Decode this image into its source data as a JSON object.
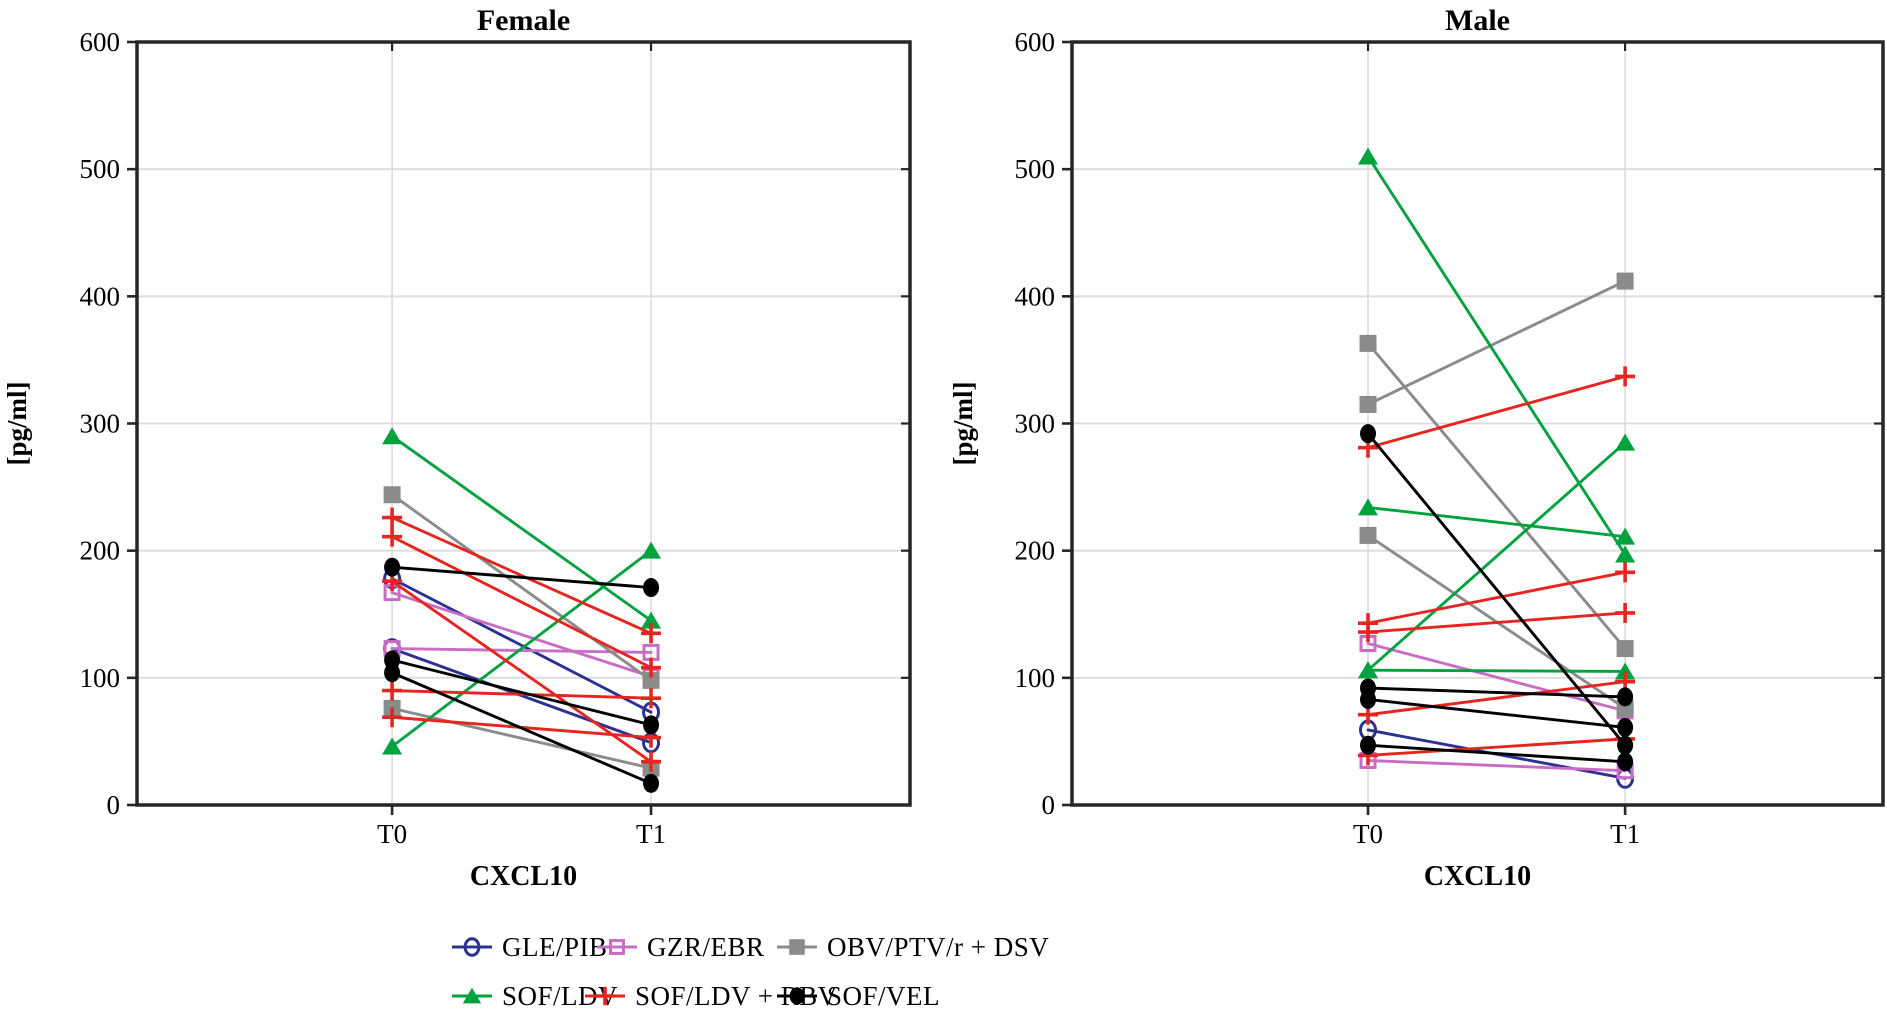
{
  "figure": {
    "ylabel": "[pg/ml]",
    "xlabel": "CXCL10",
    "x_categories": [
      "T0",
      "T1"
    ],
    "yticks": [
      0,
      100,
      200,
      300,
      400,
      500,
      600
    ],
    "panel_titles": [
      "Female",
      "Male"
    ]
  },
  "colors": {
    "grid": "#dcdcdc",
    "frame": "#262626",
    "background": "#ffffff"
  },
  "legend": {
    "items": [
      {
        "label": "GLE/PIB",
        "marker": "open-circle",
        "color": "#2b3191"
      },
      {
        "label": "GZR/EBR",
        "marker": "open-square",
        "color": "#c76ec4"
      },
      {
        "label": "OBV/PTV/r + DSV",
        "marker": "filled-square",
        "color": "#8b8b8b"
      },
      {
        "label": "SOF/LDV",
        "marker": "filled-triangle",
        "color": "#00a23e"
      },
      {
        "label": "SOF/LDV + RBV",
        "marker": "plus",
        "color": "#e52620"
      },
      {
        "label": "SOF/VEL",
        "marker": "filled-circle",
        "color": "#000000"
      }
    ]
  },
  "chart_data": [
    {
      "type": "line",
      "title": "Female",
      "xlabel": "CXCL10",
      "ylabel": "[pg/ml]",
      "categories": [
        "T0",
        "T1"
      ],
      "ylim": [
        0,
        600
      ],
      "yticks": [
        0,
        100,
        200,
        300,
        400,
        500,
        600
      ],
      "grid": true,
      "series": [
        {
          "name": "GLE/PIB",
          "lines": [
            [
              178,
              73
            ],
            [
              123,
              49
            ]
          ]
        },
        {
          "name": "GZR/EBR",
          "lines": [
            [
              167,
              101
            ],
            [
              123,
              120
            ]
          ]
        },
        {
          "name": "OBV/PTV/r + DSV",
          "lines": [
            [
              244,
              98
            ],
            [
              76,
              29
            ]
          ]
        },
        {
          "name": "SOF/LDV",
          "lines": [
            [
              290,
              145
            ],
            [
              46,
              200
            ]
          ]
        },
        {
          "name": "SOF/LDV + RBV",
          "lines": [
            [
              226,
              135
            ],
            [
              211,
              108
            ],
            [
              176,
              34
            ],
            [
              90,
              84
            ],
            [
              69,
              53
            ]
          ]
        },
        {
          "name": "SOF/VEL",
          "lines": [
            [
              187,
              171
            ],
            [
              114,
              63
            ],
            [
              104,
              17
            ]
          ]
        }
      ]
    },
    {
      "type": "line",
      "title": "Male",
      "xlabel": "CXCL10",
      "ylabel": "[pg/ml]",
      "categories": [
        "T0",
        "T1"
      ],
      "ylim": [
        0,
        600
      ],
      "yticks": [
        0,
        100,
        200,
        300,
        400,
        500,
        600
      ],
      "grid": true,
      "series": [
        {
          "name": "GLE/PIB",
          "lines": [
            [
              59,
              21
            ]
          ]
        },
        {
          "name": "GZR/EBR",
          "lines": [
            [
              127,
              74
            ],
            [
              35,
              27
            ]
          ]
        },
        {
          "name": "OBV/PTV/r + DSV",
          "lines": [
            [
              315,
              412
            ],
            [
              363,
              123
            ],
            [
              212,
              76
            ]
          ]
        },
        {
          "name": "SOF/LDV",
          "lines": [
            [
              510,
              197
            ],
            [
              234,
              211
            ],
            [
              106,
              285
            ],
            [
              106,
              105
            ]
          ]
        },
        {
          "name": "SOF/LDV + RBV",
          "lines": [
            [
              281,
              337
            ],
            [
              143,
              183
            ],
            [
              136,
              151
            ],
            [
              71,
              97
            ],
            [
              39,
              52
            ]
          ]
        },
        {
          "name": "SOF/VEL",
          "lines": [
            [
              292,
              47
            ],
            [
              92,
              85
            ],
            [
              83,
              61
            ],
            [
              47,
              34
            ]
          ]
        }
      ]
    }
  ]
}
